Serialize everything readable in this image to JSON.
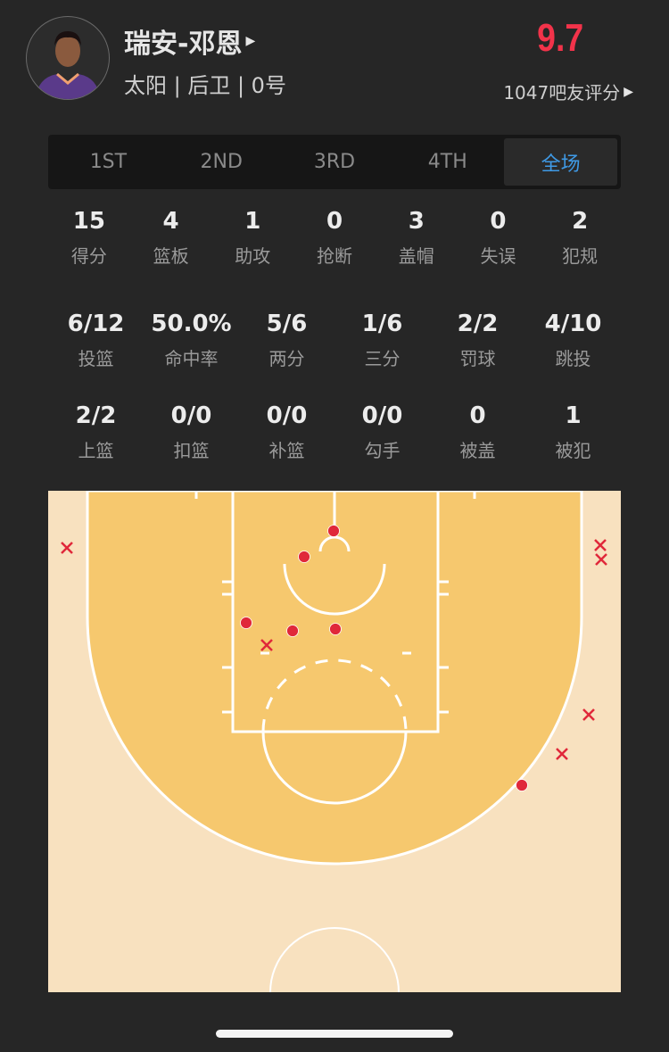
{
  "player": {
    "name": "瑞安-邓恩",
    "info": "太阳 | 后卫 | 0号",
    "rating": "9.7",
    "raters": "1047吧友评分"
  },
  "tabs": [
    {
      "label": "1ST"
    },
    {
      "label": "2ND"
    },
    {
      "label": "3RD"
    },
    {
      "label": "4TH"
    },
    {
      "label": "全场",
      "active": true
    }
  ],
  "stats_row1": [
    {
      "value": "15",
      "label": "得分"
    },
    {
      "value": "4",
      "label": "篮板"
    },
    {
      "value": "1",
      "label": "助攻"
    },
    {
      "value": "0",
      "label": "抢断"
    },
    {
      "value": "3",
      "label": "盖帽"
    },
    {
      "value": "0",
      "label": "失误"
    },
    {
      "value": "2",
      "label": "犯规"
    }
  ],
  "stats_row2": [
    {
      "value": "6/12",
      "label": "投篮"
    },
    {
      "value": "50.0%",
      "label": "命中率"
    },
    {
      "value": "5/6",
      "label": "两分"
    },
    {
      "value": "1/6",
      "label": "三分"
    },
    {
      "value": "2/2",
      "label": "罚球"
    },
    {
      "value": "4/10",
      "label": "跳投"
    }
  ],
  "stats_row3": [
    {
      "value": "2/2",
      "label": "上篮"
    },
    {
      "value": "0/0",
      "label": "扣篮"
    },
    {
      "value": "0/0",
      "label": "补篮"
    },
    {
      "value": "0/0",
      "label": "勾手"
    },
    {
      "value": "0",
      "label": "被盖"
    },
    {
      "value": "1",
      "label": "被犯"
    }
  ],
  "shot_chart": {
    "made_count": 6,
    "missed_count": 6,
    "made_marker": "dot",
    "missed_marker": "x"
  },
  "colors": {
    "rating": "#f2334a",
    "active_tab": "#3f9ae6",
    "court_inner": "#f6c86e",
    "court_outer": "#f8e1bf",
    "shot": "#e0283a"
  }
}
